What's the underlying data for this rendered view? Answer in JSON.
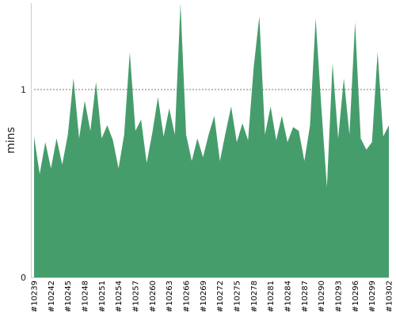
{
  "chart_data": {
    "type": "area",
    "title": "",
    "xlabel": "",
    "ylabel": "mins",
    "ylim": [
      0,
      1.46
    ],
    "yticks": [
      {
        "value": 0,
        "label": "0"
      },
      {
        "value": 1,
        "label": "1"
      }
    ],
    "reference_line": {
      "value": 1,
      "style": "dashed"
    },
    "x_tick_labels": [
      {
        "index": 0,
        "label": "#10239"
      },
      {
        "index": 3,
        "label": "#10242"
      },
      {
        "index": 6,
        "label": "#10245"
      },
      {
        "index": 9,
        "label": "#10248"
      },
      {
        "index": 12,
        "label": "#10251"
      },
      {
        "index": 15,
        "label": "#10254"
      },
      {
        "index": 18,
        "label": "#10257"
      },
      {
        "index": 21,
        "label": "#10260"
      },
      {
        "index": 24,
        "label": "#10263"
      },
      {
        "index": 27,
        "label": "#10266"
      },
      {
        "index": 30,
        "label": "#10269"
      },
      {
        "index": 33,
        "label": "#10272"
      },
      {
        "index": 36,
        "label": "#10275"
      },
      {
        "index": 39,
        "label": "#10278"
      },
      {
        "index": 42,
        "label": "#10281"
      },
      {
        "index": 45,
        "label": "#10284"
      },
      {
        "index": 48,
        "label": "#10287"
      },
      {
        "index": 51,
        "label": "#10290"
      },
      {
        "index": 54,
        "label": "#10293"
      },
      {
        "index": 57,
        "label": "#10296"
      },
      {
        "index": 60,
        "label": "#10299"
      },
      {
        "index": 63,
        "label": "#10302"
      }
    ],
    "values": [
      0.75,
      0.55,
      0.72,
      0.58,
      0.74,
      0.6,
      0.76,
      1.06,
      0.74,
      0.94,
      0.78,
      1.04,
      0.74,
      0.81,
      0.73,
      0.58,
      0.76,
      1.2,
      0.78,
      0.84,
      0.61,
      0.77,
      0.96,
      0.75,
      0.9,
      0.76,
      1.48,
      0.76,
      0.62,
      0.74,
      0.64,
      0.76,
      0.86,
      0.62,
      0.77,
      0.91,
      0.72,
      0.82,
      0.73,
      1.12,
      1.39,
      0.76,
      0.91,
      0.73,
      0.86,
      0.72,
      0.8,
      0.78,
      0.62,
      0.81,
      1.38,
      0.91,
      0.48,
      1.14,
      0.74,
      1.06,
      0.76,
      1.36,
      0.74,
      0.68,
      0.72,
      1.2,
      0.75,
      0.81
    ],
    "color": "#469d6c",
    "grid": false
  }
}
